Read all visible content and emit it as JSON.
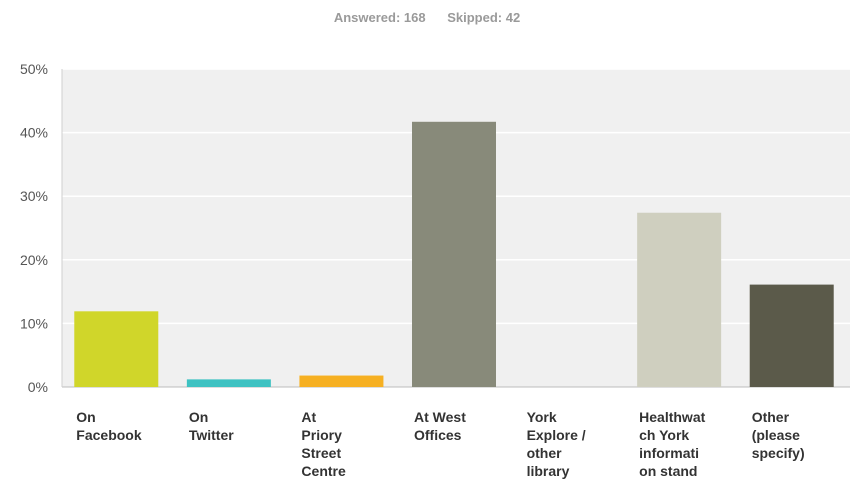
{
  "summary": {
    "answered": "Answered: 168",
    "skipped": "Skipped: 42"
  },
  "chart_data": {
    "type": "bar",
    "categories": [
      "On Facebook",
      "On Twitter",
      "At Priory Street Centre",
      "At West Offices",
      "York Explore / other library",
      "Healthwatch York information stand",
      "Other (please specify)"
    ],
    "category_labels": [
      "On\nFacebook",
      "On\nTwitter",
      "At\nPriory\nStreet\nCentre",
      "At West\nOffices",
      "York\nExplore /\nother\nlibrary",
      "Healthwat\nch York\ninformati\non stand",
      "Other\n(please\nspecify)"
    ],
    "values": [
      11.9,
      1.2,
      1.8,
      41.7,
      0,
      27.4,
      16.1
    ],
    "colors": [
      "#d0d62a",
      "#3ec2c2",
      "#f6b022",
      "#888a7a",
      "#aaaaaa",
      "#cfcfbf",
      "#5b5a4a"
    ],
    "ylim": [
      0,
      50
    ],
    "yticks": [
      0,
      10,
      20,
      30,
      40,
      50
    ],
    "ytick_labels": [
      "0%",
      "10%",
      "20%",
      "30%",
      "40%",
      "50%"
    ],
    "grid": true,
    "title": "",
    "xlabel": "",
    "ylabel": ""
  }
}
